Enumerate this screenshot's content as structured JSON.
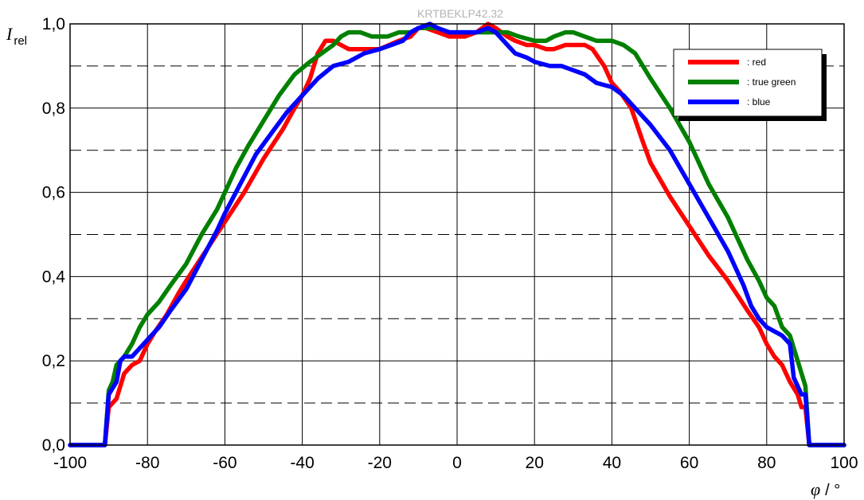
{
  "chart_data": {
    "type": "line",
    "watermark": "KRTBEKLP42.32",
    "ylabel": {
      "symbol": "I",
      "subscript": "rel"
    },
    "xlabel": {
      "symbol": "φ",
      "unit": "/ °"
    },
    "xlim": [
      -100,
      100
    ],
    "ylim": [
      0,
      1
    ],
    "xticks": [
      -100,
      -80,
      -60,
      -40,
      -20,
      0,
      20,
      40,
      60,
      80,
      100
    ],
    "xtick_labels": [
      "-100",
      "-80",
      "-60",
      "-40",
      "-20",
      "0",
      "20",
      "40",
      "60",
      "80",
      "100"
    ],
    "yticks": [
      0,
      0.2,
      0.4,
      0.6,
      0.8,
      1.0
    ],
    "ytick_labels": [
      "0,0",
      "0,2",
      "0,4",
      "0,6",
      "0,8",
      "1,0"
    ],
    "minor_grid_y": [
      0.1,
      0.3,
      0.5,
      0.7,
      0.9
    ],
    "grid": true,
    "legend_position": "top-right",
    "series": [
      {
        "name": ": red",
        "color": "#ff0000",
        "points": [
          [
            -100,
            0
          ],
          [
            -91,
            0
          ],
          [
            -90,
            0.09
          ],
          [
            -88,
            0.11
          ],
          [
            -86,
            0.17
          ],
          [
            -84,
            0.19
          ],
          [
            -82,
            0.2
          ],
          [
            -80,
            0.24
          ],
          [
            -78,
            0.27
          ],
          [
            -75,
            0.31
          ],
          [
            -72,
            0.36
          ],
          [
            -70,
            0.39
          ],
          [
            -65,
            0.46
          ],
          [
            -60,
            0.53
          ],
          [
            -55,
            0.6
          ],
          [
            -50,
            0.68
          ],
          [
            -45,
            0.75
          ],
          [
            -42,
            0.8
          ],
          [
            -40,
            0.83
          ],
          [
            -38,
            0.87
          ],
          [
            -36,
            0.93
          ],
          [
            -34,
            0.96
          ],
          [
            -32,
            0.96
          ],
          [
            -30,
            0.95
          ],
          [
            -28,
            0.94
          ],
          [
            -25,
            0.94
          ],
          [
            -20,
            0.94
          ],
          [
            -15,
            0.96
          ],
          [
            -12,
            0.97
          ],
          [
            -10,
            0.99
          ],
          [
            -8,
            0.99
          ],
          [
            -5,
            0.98
          ],
          [
            -2,
            0.97
          ],
          [
            0,
            0.97
          ],
          [
            2,
            0.97
          ],
          [
            5,
            0.98
          ],
          [
            8,
            1.0
          ],
          [
            10,
            0.99
          ],
          [
            13,
            0.97
          ],
          [
            15,
            0.96
          ],
          [
            18,
            0.95
          ],
          [
            20,
            0.95
          ],
          [
            23,
            0.94
          ],
          [
            25,
            0.94
          ],
          [
            28,
            0.95
          ],
          [
            30,
            0.95
          ],
          [
            33,
            0.95
          ],
          [
            35,
            0.94
          ],
          [
            38,
            0.9
          ],
          [
            40,
            0.86
          ],
          [
            42,
            0.84
          ],
          [
            45,
            0.8
          ],
          [
            48,
            0.72
          ],
          [
            50,
            0.67
          ],
          [
            55,
            0.59
          ],
          [
            60,
            0.52
          ],
          [
            65,
            0.45
          ],
          [
            70,
            0.39
          ],
          [
            75,
            0.32
          ],
          [
            78,
            0.28
          ],
          [
            80,
            0.24
          ],
          [
            82,
            0.21
          ],
          [
            84,
            0.19
          ],
          [
            86,
            0.15
          ],
          [
            88,
            0.12
          ],
          [
            89,
            0.09
          ],
          [
            90,
            0.09
          ],
          [
            91,
            0
          ],
          [
            100,
            0
          ]
        ]
      },
      {
        "name": ": true green",
        "color": "#008000",
        "points": [
          [
            -100,
            0
          ],
          [
            -91,
            0
          ],
          [
            -90,
            0.13
          ],
          [
            -89,
            0.15
          ],
          [
            -88,
            0.19
          ],
          [
            -86,
            0.21
          ],
          [
            -84,
            0.24
          ],
          [
            -82,
            0.28
          ],
          [
            -80,
            0.31
          ],
          [
            -77,
            0.34
          ],
          [
            -74,
            0.38
          ],
          [
            -70,
            0.43
          ],
          [
            -66,
            0.5
          ],
          [
            -62,
            0.56
          ],
          [
            -60,
            0.6
          ],
          [
            -57,
            0.66
          ],
          [
            -54,
            0.71
          ],
          [
            -50,
            0.77
          ],
          [
            -46,
            0.83
          ],
          [
            -42,
            0.88
          ],
          [
            -38,
            0.91
          ],
          [
            -35,
            0.93
          ],
          [
            -32,
            0.95
          ],
          [
            -30,
            0.97
          ],
          [
            -28,
            0.98
          ],
          [
            -25,
            0.98
          ],
          [
            -22,
            0.97
          ],
          [
            -18,
            0.97
          ],
          [
            -15,
            0.98
          ],
          [
            -12,
            0.98
          ],
          [
            -10,
            0.99
          ],
          [
            -8,
            0.99
          ],
          [
            -5,
            0.99
          ],
          [
            -2,
            0.98
          ],
          [
            0,
            0.98
          ],
          [
            3,
            0.98
          ],
          [
            5,
            0.98
          ],
          [
            8,
            0.98
          ],
          [
            10,
            0.98
          ],
          [
            13,
            0.98
          ],
          [
            16,
            0.97
          ],
          [
            20,
            0.96
          ],
          [
            23,
            0.96
          ],
          [
            25,
            0.97
          ],
          [
            28,
            0.98
          ],
          [
            30,
            0.98
          ],
          [
            33,
            0.97
          ],
          [
            36,
            0.96
          ],
          [
            40,
            0.96
          ],
          [
            43,
            0.95
          ],
          [
            46,
            0.93
          ],
          [
            50,
            0.87
          ],
          [
            55,
            0.8
          ],
          [
            60,
            0.72
          ],
          [
            65,
            0.62
          ],
          [
            70,
            0.54
          ],
          [
            72,
            0.5
          ],
          [
            75,
            0.44
          ],
          [
            78,
            0.39
          ],
          [
            80,
            0.35
          ],
          [
            82,
            0.33
          ],
          [
            84,
            0.28
          ],
          [
            86,
            0.26
          ],
          [
            88,
            0.2
          ],
          [
            90,
            0.14
          ],
          [
            91,
            0
          ],
          [
            100,
            0
          ]
        ]
      },
      {
        "name": ": blue",
        "color": "#0000ff",
        "points": [
          [
            -100,
            0
          ],
          [
            -91,
            0
          ],
          [
            -90,
            0.12
          ],
          [
            -88,
            0.15
          ],
          [
            -87,
            0.2
          ],
          [
            -86,
            0.21
          ],
          [
            -84,
            0.21
          ],
          [
            -82,
            0.23
          ],
          [
            -80,
            0.25
          ],
          [
            -77,
            0.28
          ],
          [
            -74,
            0.32
          ],
          [
            -70,
            0.37
          ],
          [
            -66,
            0.44
          ],
          [
            -62,
            0.51
          ],
          [
            -60,
            0.55
          ],
          [
            -56,
            0.62
          ],
          [
            -52,
            0.69
          ],
          [
            -48,
            0.74
          ],
          [
            -44,
            0.79
          ],
          [
            -40,
            0.83
          ],
          [
            -36,
            0.87
          ],
          [
            -32,
            0.9
          ],
          [
            -28,
            0.91
          ],
          [
            -24,
            0.93
          ],
          [
            -20,
            0.94
          ],
          [
            -17,
            0.95
          ],
          [
            -14,
            0.96
          ],
          [
            -12,
            0.98
          ],
          [
            -10,
            0.99
          ],
          [
            -7,
            1.0
          ],
          [
            -5,
            0.99
          ],
          [
            -2,
            0.98
          ],
          [
            0,
            0.98
          ],
          [
            3,
            0.98
          ],
          [
            5,
            0.98
          ],
          [
            8,
            0.99
          ],
          [
            10,
            0.98
          ],
          [
            13,
            0.95
          ],
          [
            15,
            0.93
          ],
          [
            18,
            0.92
          ],
          [
            20,
            0.91
          ],
          [
            24,
            0.9
          ],
          [
            27,
            0.9
          ],
          [
            30,
            0.89
          ],
          [
            33,
            0.88
          ],
          [
            36,
            0.86
          ],
          [
            40,
            0.85
          ],
          [
            43,
            0.83
          ],
          [
            46,
            0.8
          ],
          [
            50,
            0.76
          ],
          [
            55,
            0.7
          ],
          [
            60,
            0.62
          ],
          [
            65,
            0.54
          ],
          [
            70,
            0.46
          ],
          [
            74,
            0.38
          ],
          [
            76,
            0.33
          ],
          [
            78,
            0.3
          ],
          [
            80,
            0.28
          ],
          [
            82,
            0.27
          ],
          [
            84,
            0.26
          ],
          [
            86,
            0.24
          ],
          [
            87,
            0.16
          ],
          [
            88,
            0.14
          ],
          [
            89,
            0.12
          ],
          [
            90,
            0.12
          ],
          [
            91,
            0
          ],
          [
            100,
            0
          ]
        ]
      }
    ]
  }
}
